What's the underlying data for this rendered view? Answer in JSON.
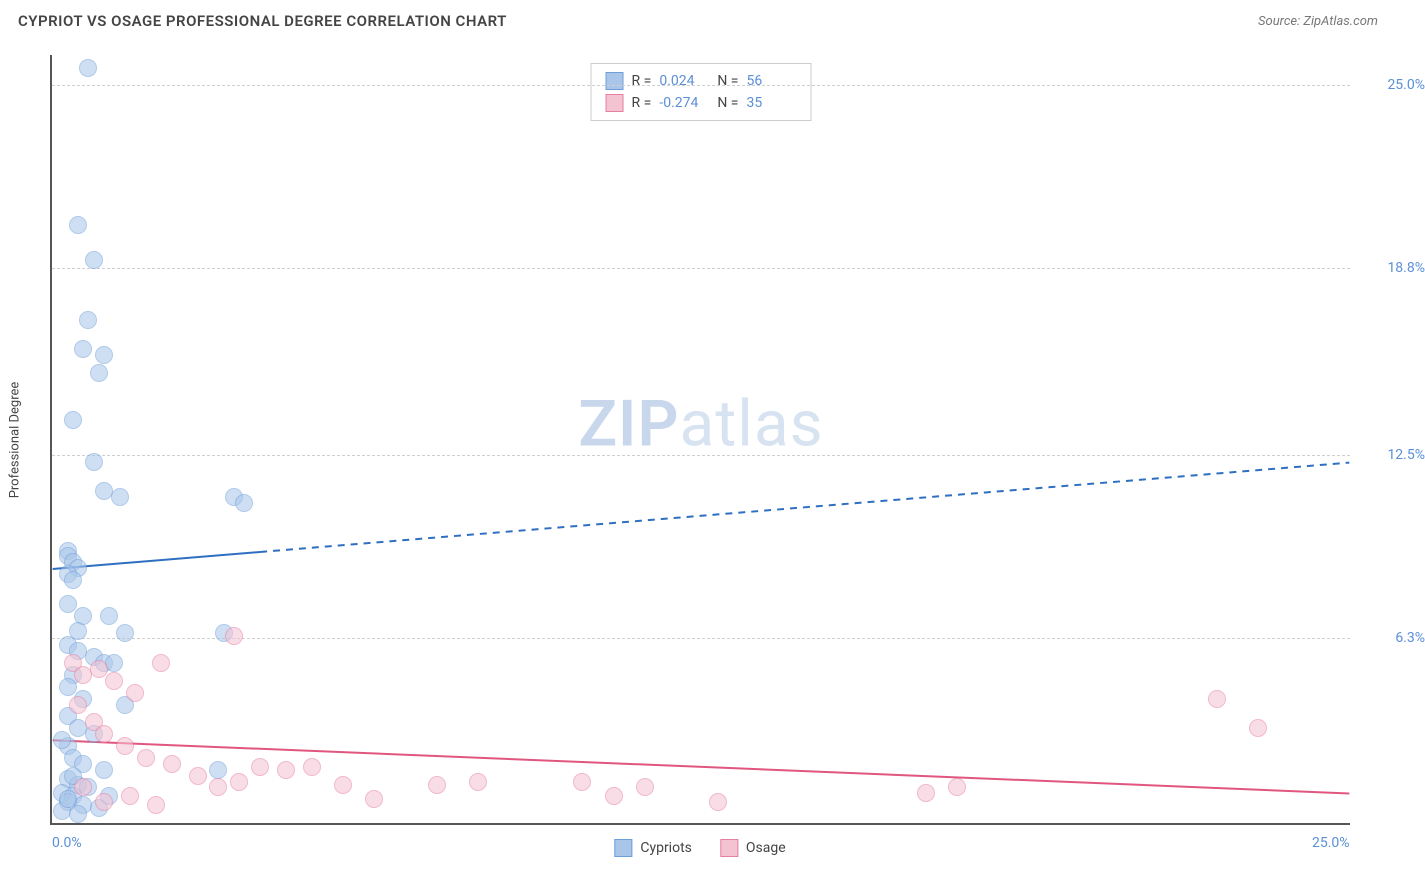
{
  "header": {
    "title": "CYPRIOT VS OSAGE PROFESSIONAL DEGREE CORRELATION CHART",
    "source": "Source: ZipAtlas.com"
  },
  "watermark": {
    "part1": "ZIP",
    "part2": "atlas"
  },
  "chart": {
    "type": "scatter",
    "y_axis_label": "Professional Degree",
    "xlim": [
      0,
      25
    ],
    "ylim": [
      0,
      26
    ],
    "x_ticks": [
      {
        "value": 0,
        "label": "0.0%"
      },
      {
        "value": 25,
        "label": "25.0%"
      }
    ],
    "y_ticks": [
      {
        "value": 6.3,
        "label": "6.3%"
      },
      {
        "value": 12.5,
        "label": "12.5%"
      },
      {
        "value": 18.8,
        "label": "18.8%"
      },
      {
        "value": 25.0,
        "label": "25.0%"
      }
    ],
    "grid_color": "#cfcfcf",
    "background_color": "#ffffff",
    "axis_color": "#555555",
    "tick_label_color": "#5b8fd6",
    "series": [
      {
        "name": "Cypriots",
        "fill": "#a9c6ea",
        "stroke": "#6f9fd8",
        "fill_opacity": 0.55,
        "marker_radius": 9,
        "trend": {
          "y_start": 8.6,
          "y_end": 12.2,
          "solid_until_x": 4.0,
          "color": "#2e6fc1",
          "width": 2
        },
        "stats": {
          "R": "0.024",
          "N": "56"
        },
        "points": [
          [
            0.7,
            25.5
          ],
          [
            0.5,
            20.2
          ],
          [
            0.8,
            19.0
          ],
          [
            0.7,
            17.0
          ],
          [
            0.6,
            16.0
          ],
          [
            1.0,
            15.8
          ],
          [
            0.9,
            15.2
          ],
          [
            0.4,
            13.6
          ],
          [
            0.8,
            12.2
          ],
          [
            1.3,
            11.0
          ],
          [
            1.0,
            11.2
          ],
          [
            3.5,
            11.0
          ],
          [
            3.7,
            10.8
          ],
          [
            0.3,
            9.2
          ],
          [
            0.3,
            9.0
          ],
          [
            0.4,
            8.8
          ],
          [
            0.5,
            8.6
          ],
          [
            0.3,
            8.4
          ],
          [
            0.4,
            8.2
          ],
          [
            0.3,
            7.4
          ],
          [
            0.6,
            7.0
          ],
          [
            1.1,
            7.0
          ],
          [
            1.4,
            6.4
          ],
          [
            3.3,
            6.4
          ],
          [
            0.3,
            6.0
          ],
          [
            0.5,
            5.8
          ],
          [
            0.8,
            5.6
          ],
          [
            1.0,
            5.4
          ],
          [
            1.2,
            5.4
          ],
          [
            0.4,
            5.0
          ],
          [
            0.3,
            4.6
          ],
          [
            0.6,
            4.2
          ],
          [
            1.4,
            4.0
          ],
          [
            0.3,
            3.6
          ],
          [
            0.5,
            3.2
          ],
          [
            0.8,
            3.0
          ],
          [
            0.3,
            2.6
          ],
          [
            0.4,
            2.2
          ],
          [
            0.6,
            2.0
          ],
          [
            1.0,
            1.8
          ],
          [
            0.3,
            1.5
          ],
          [
            0.5,
            1.3
          ],
          [
            0.7,
            1.2
          ],
          [
            0.2,
            1.0
          ],
          [
            0.4,
            0.9
          ],
          [
            0.3,
            0.7
          ],
          [
            0.6,
            0.6
          ],
          [
            3.2,
            1.8
          ],
          [
            0.2,
            0.4
          ],
          [
            0.5,
            0.3
          ],
          [
            0.3,
            0.8
          ],
          [
            0.9,
            0.5
          ],
          [
            1.1,
            0.9
          ],
          [
            0.4,
            1.6
          ],
          [
            0.2,
            2.8
          ],
          [
            0.5,
            6.5
          ]
        ]
      },
      {
        "name": "Osage",
        "fill": "#f4c3d2",
        "stroke": "#e77fa3",
        "fill_opacity": 0.55,
        "marker_radius": 9,
        "trend": {
          "y_start": 2.8,
          "y_end": 1.0,
          "solid_until_x": 25.0,
          "color": "#e0567f",
          "width": 2
        },
        "stats": {
          "R": "-0.274",
          "N": "35"
        },
        "points": [
          [
            0.4,
            5.4
          ],
          [
            0.6,
            5.0
          ],
          [
            0.9,
            5.2
          ],
          [
            1.2,
            4.8
          ],
          [
            1.6,
            4.4
          ],
          [
            2.1,
            5.4
          ],
          [
            3.5,
            6.3
          ],
          [
            0.5,
            4.0
          ],
          [
            0.8,
            3.4
          ],
          [
            1.0,
            3.0
          ],
          [
            1.4,
            2.6
          ],
          [
            1.8,
            2.2
          ],
          [
            2.3,
            2.0
          ],
          [
            2.8,
            1.6
          ],
          [
            3.2,
            1.2
          ],
          [
            3.6,
            1.4
          ],
          [
            4.0,
            1.9
          ],
          [
            4.5,
            1.8
          ],
          [
            5.0,
            1.9
          ],
          [
            5.6,
            1.3
          ],
          [
            6.2,
            0.8
          ],
          [
            7.4,
            1.3
          ],
          [
            8.2,
            1.4
          ],
          [
            10.2,
            1.4
          ],
          [
            10.8,
            0.9
          ],
          [
            11.4,
            1.2
          ],
          [
            12.8,
            0.7
          ],
          [
            16.8,
            1.0
          ],
          [
            17.4,
            1.2
          ],
          [
            22.4,
            4.2
          ],
          [
            23.2,
            3.2
          ],
          [
            0.6,
            1.2
          ],
          [
            1.0,
            0.7
          ],
          [
            1.5,
            0.9
          ],
          [
            2.0,
            0.6
          ]
        ]
      }
    ],
    "legend_stats": {
      "R_label": "R =",
      "N_label": "N ="
    },
    "bottom_legend": {
      "items": [
        {
          "label": "Cypriots",
          "fill": "#a9c6ea",
          "stroke": "#6f9fd8"
        },
        {
          "label": "Osage",
          "fill": "#f4c3d2",
          "stroke": "#e77fa3"
        }
      ]
    }
  }
}
